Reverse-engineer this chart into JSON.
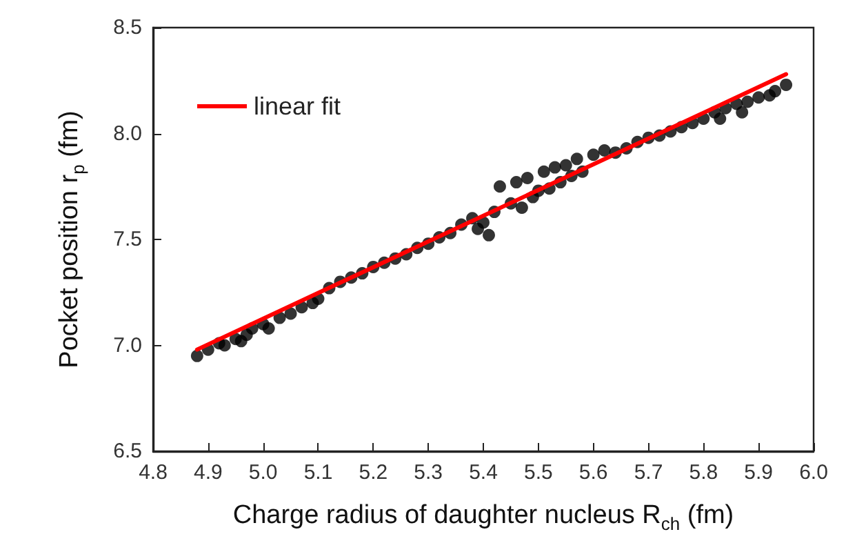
{
  "chart_data": {
    "type": "scatter",
    "xlabel": "Charge radius of daughter nucleus R$_{ch}$ (fm)",
    "ylabel": "Pocket position r$_{p}$ (fm)",
    "xlim": [
      4.8,
      6.0
    ],
    "ylim": [
      6.5,
      8.5
    ],
    "xticks": [
      4.8,
      4.9,
      {
        "value": 5.0,
        "label": "5.0"
      },
      5.1,
      5.2,
      5.3,
      5.4,
      5.5,
      5.6,
      5.7,
      5.8,
      5.9,
      {
        "value": 6.0,
        "label": "6.0"
      }
    ],
    "yticks": [
      6.5,
      {
        "value": 7.0,
        "label": "7.0"
      },
      7.5,
      {
        "value": 8.0,
        "label": "8.0"
      },
      8.5
    ],
    "grid": false,
    "legend": "top left",
    "marker": "circle",
    "series": [
      {
        "color": "#000000",
        "x": [
          4.88,
          4.9,
          4.92,
          4.93,
          4.95,
          4.96,
          4.97,
          4.98,
          5.0,
          5.01,
          5.03,
          5.05,
          5.07,
          5.09,
          5.1,
          5.12,
          5.14,
          5.16,
          5.18,
          5.2,
          5.22,
          5.24,
          5.26,
          5.28,
          5.3,
          5.32,
          5.34,
          5.36,
          5.38,
          5.39,
          5.4,
          5.41,
          5.42,
          5.43,
          5.45,
          5.46,
          5.47,
          5.48,
          5.49,
          5.5,
          5.51,
          5.52,
          5.53,
          5.54,
          5.55,
          5.56,
          5.57,
          5.58,
          5.6,
          5.62,
          5.64,
          5.66,
          5.68,
          5.7,
          5.72,
          5.74,
          5.76,
          5.78,
          5.8,
          5.82,
          5.83,
          5.84,
          5.86,
          5.87,
          5.88,
          5.9,
          5.92,
          5.93,
          5.95
        ],
        "values": [
          6.95,
          6.98,
          7.01,
          7.0,
          7.03,
          7.02,
          7.05,
          7.08,
          7.1,
          7.08,
          7.13,
          7.15,
          7.18,
          7.2,
          7.22,
          7.27,
          7.3,
          7.32,
          7.34,
          7.37,
          7.39,
          7.41,
          7.43,
          7.46,
          7.48,
          7.51,
          7.53,
          7.57,
          7.6,
          7.55,
          7.58,
          7.52,
          7.63,
          7.75,
          7.67,
          7.77,
          7.65,
          7.79,
          7.7,
          7.73,
          7.82,
          7.74,
          7.84,
          7.77,
          7.85,
          7.8,
          7.88,
          7.82,
          7.9,
          7.92,
          7.91,
          7.93,
          7.96,
          7.98,
          7.99,
          8.01,
          8.03,
          8.05,
          8.07,
          8.1,
          8.07,
          8.12,
          8.14,
          8.1,
          8.15,
          8.17,
          8.18,
          8.2,
          8.23
        ]
      },
      {
        "type": "line",
        "name": "linear fit",
        "color": "#ff0000",
        "marker": "none",
        "line_style": "solid",
        "x": [
          4.88,
          5.95
        ],
        "values": [
          6.98,
          8.28
        ]
      }
    ]
  }
}
